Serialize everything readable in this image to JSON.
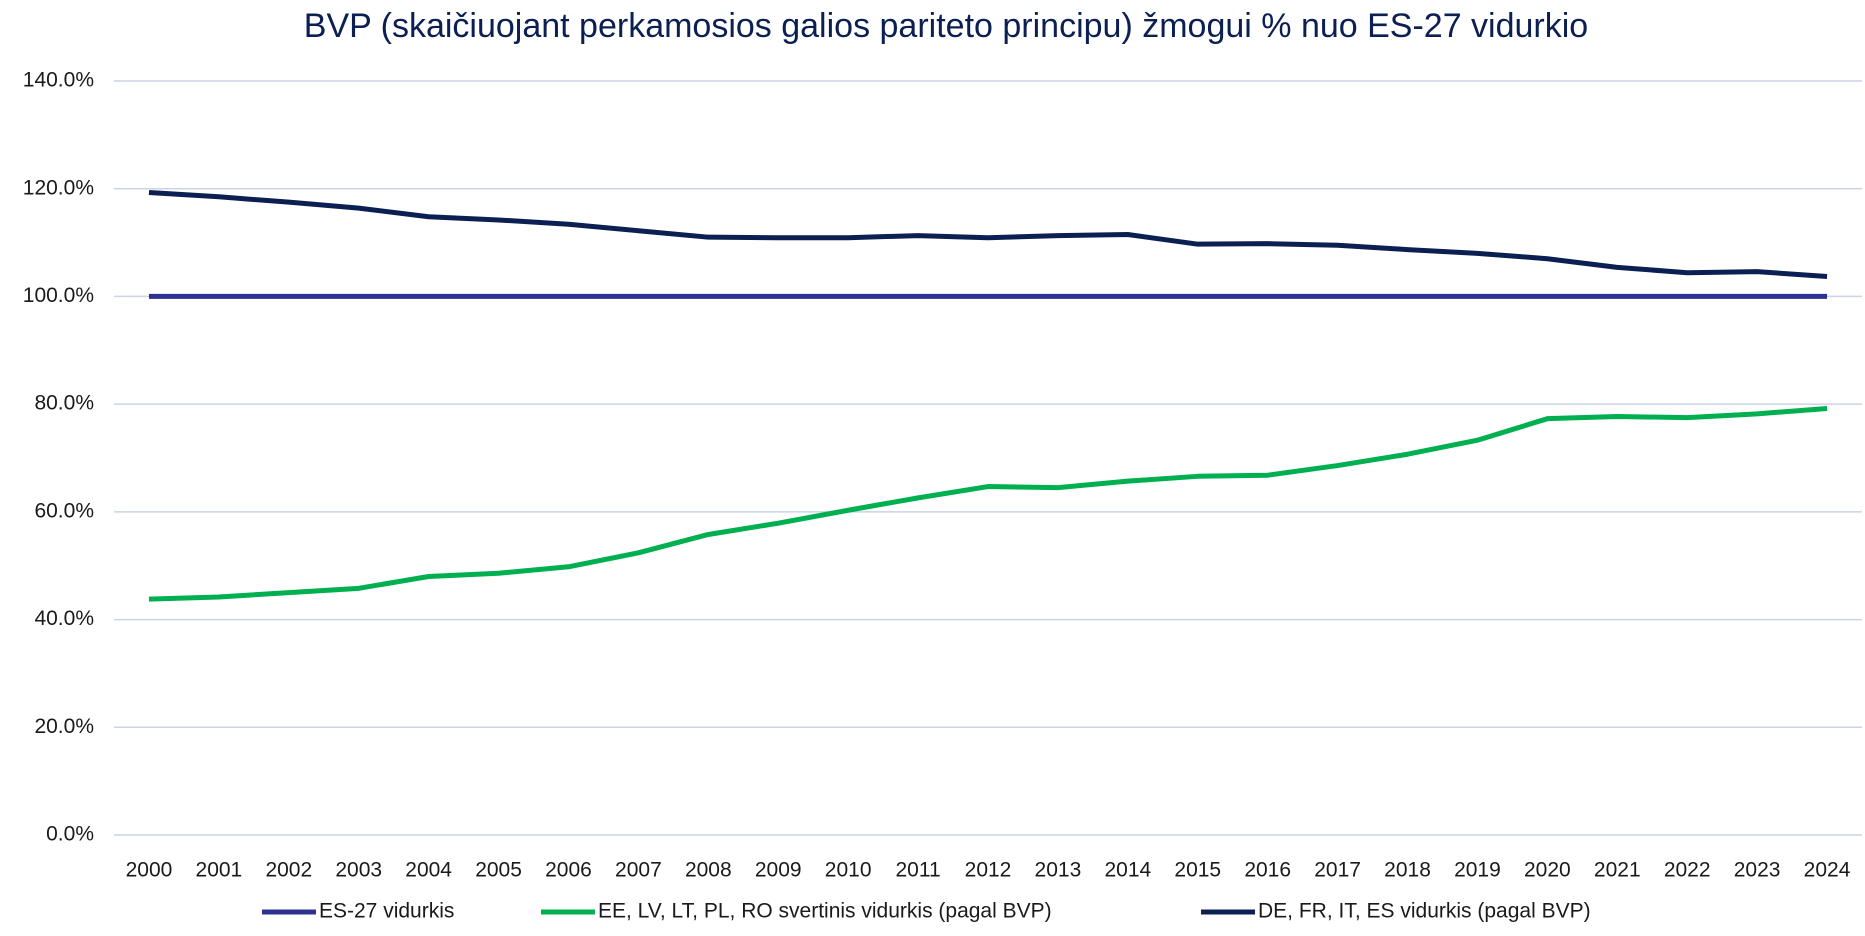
{
  "chart_data": {
    "type": "line",
    "title": "BVP (skaičiuojant perkamosios galios pariteto principu) žmogui % nuo ES-27 vidurkio",
    "categories": [
      "2000",
      "2001",
      "2002",
      "2003",
      "2004",
      "2005",
      "2006",
      "2007",
      "2008",
      "2009",
      "2010",
      "2011",
      "2012",
      "2013",
      "2014",
      "2015",
      "2016",
      "2017",
      "2018",
      "2019",
      "2020",
      "2021",
      "2022",
      "2023",
      "2024"
    ],
    "series": [
      {
        "name": "ES-27 vidurkis",
        "color": "#2e3192",
        "values": [
          100,
          100,
          100,
          100,
          100,
          100,
          100,
          100,
          100,
          100,
          100,
          100,
          100,
          100,
          100,
          100,
          100,
          100,
          100,
          100,
          100,
          100,
          100,
          100,
          100
        ]
      },
      {
        "name": "EE, LV, LT, PL, RO svertinis vidurkis (pagal BVP)",
        "color": "#00b050",
        "values": [
          43.8,
          44.2,
          45.0,
          45.8,
          48.0,
          48.6,
          49.8,
          52.4,
          55.8,
          57.9,
          60.3,
          62.6,
          64.7,
          64.5,
          65.7,
          66.6,
          66.8,
          68.6,
          70.7,
          73.3,
          77.3,
          77.7,
          77.5,
          78.2,
          79.2
        ]
      },
      {
        "name": "DE, FR, IT, ES vidurkis (pagal BVP)",
        "color": "#0b1f52",
        "values": [
          119.3,
          118.5,
          117.5,
          116.4,
          114.8,
          114.2,
          113.4,
          112.2,
          111.0,
          110.9,
          110.9,
          111.3,
          110.9,
          111.3,
          111.5,
          109.7,
          109.8,
          109.5,
          108.7,
          108.0,
          107.0,
          105.4,
          104.4,
          104.6,
          103.7
        ]
      }
    ],
    "ylim": [
      0,
      140
    ],
    "yticks": [
      {
        "value": 0,
        "label": "0.0%"
      },
      {
        "value": 20,
        "label": "20.0%"
      },
      {
        "value": 40,
        "label": "40.0%"
      },
      {
        "value": 60,
        "label": "60.0%"
      },
      {
        "value": 80,
        "label": "80.0%"
      },
      {
        "value": 100,
        "label": "100.0%"
      },
      {
        "value": 120,
        "label": "120.0%"
      },
      {
        "value": 140,
        "label": "140.0%"
      }
    ],
    "grid": true,
    "legend": "bottom"
  }
}
